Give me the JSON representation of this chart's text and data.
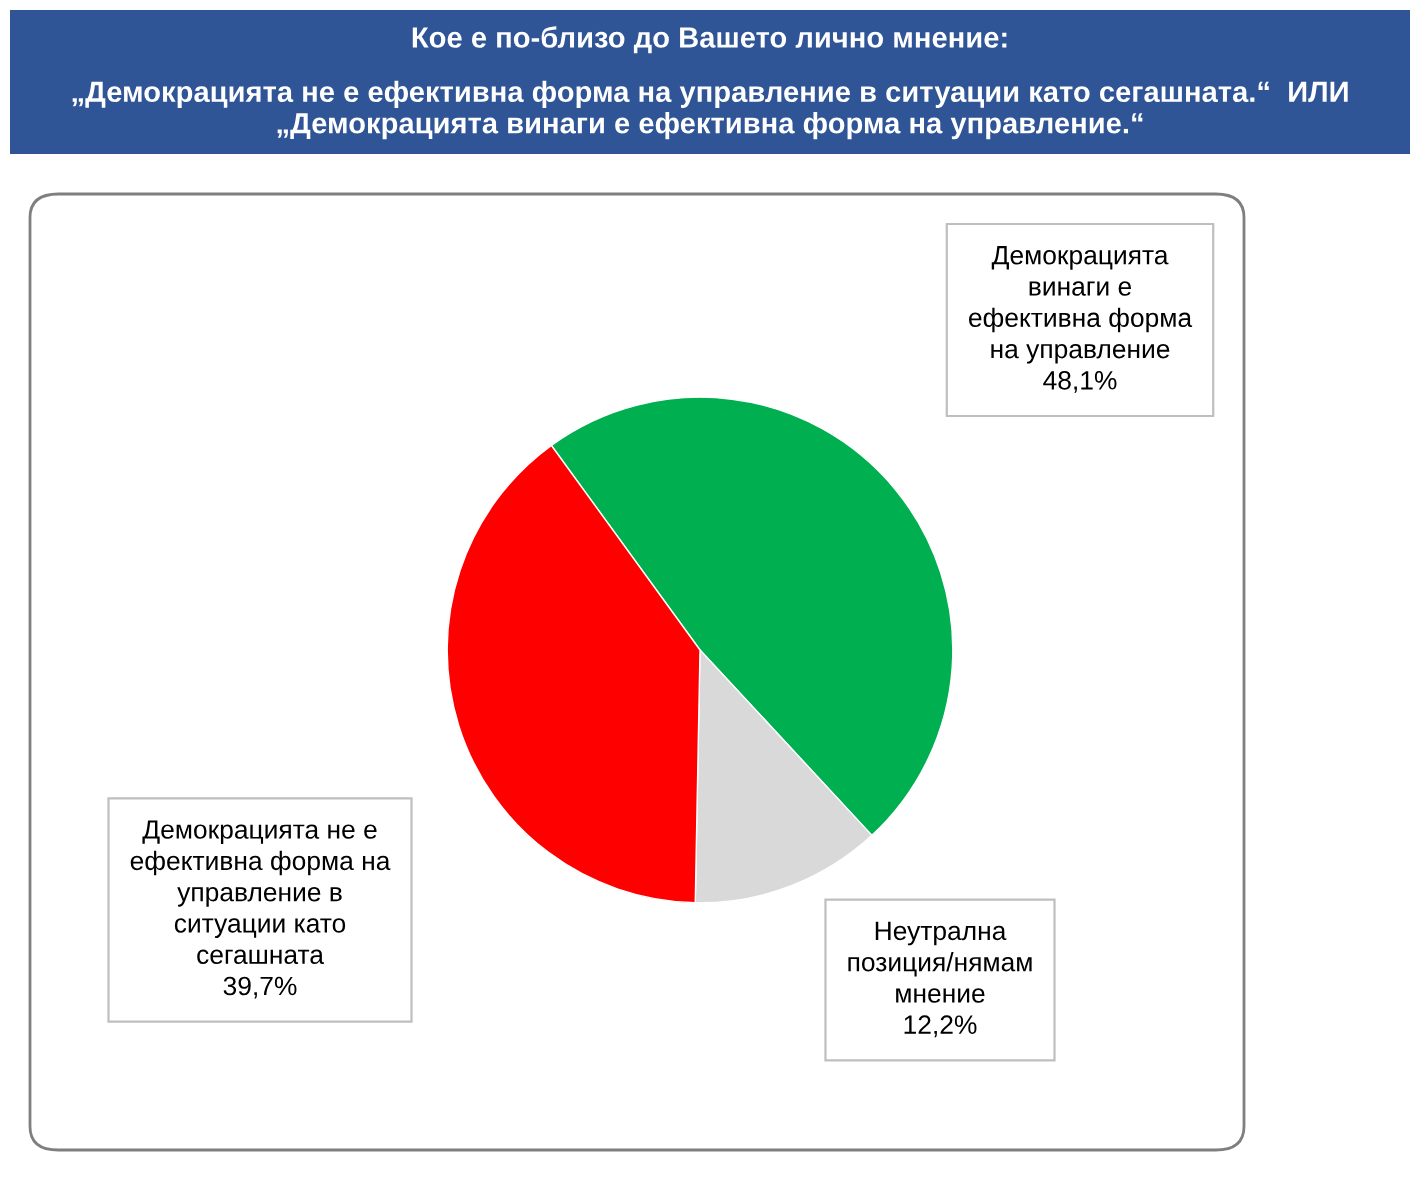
{
  "chart_data": {
    "type": "pie",
    "title": "Кое е по-близо до Вашето лично мнение:",
    "subtitle": "„Демокрацията не е ефективна форма на управление в ситуации като сегашната.“  ИЛИ „Демокрацията винаги е ефективна форма на управление.“",
    "categories": [
      "Демокрацията\nвинаги е\nефективна форма\nна управление",
      "Неутрална\nпозиция/нямам\nмнение",
      "Демокрацията не е\nефективна форма на\nуправление в\nситуации като\nсегашната"
    ],
    "values": [
      48.1,
      12.2,
      39.7
    ],
    "colors": [
      "#00b050",
      "#d9d9d9",
      "#ff0000"
    ],
    "value_labels": [
      "48,1%",
      "12,2%",
      "39,7%"
    ],
    "legend": false
  }
}
